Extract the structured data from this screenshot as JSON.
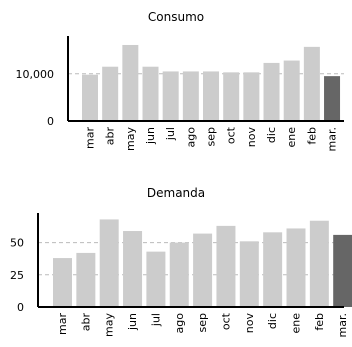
{
  "colors": {
    "bar": "#cccccc",
    "bar_highlight": "#666666",
    "axis": "#000000",
    "grid": "#bbbbbb"
  },
  "chart_data": [
    {
      "type": "bar",
      "title": "Consumo",
      "categories": [
        "mar",
        "abr",
        "may",
        "jun",
        "jul",
        "ago",
        "sep",
        "oct",
        "nov",
        "dic",
        "ene",
        "feb",
        "mar."
      ],
      "values": [
        9800,
        11500,
        16100,
        11500,
        10500,
        10500,
        10500,
        10300,
        10300,
        12300,
        12800,
        15700,
        9500
      ],
      "highlight_index": 12,
      "ylim": [
        0,
        18000
      ],
      "yticks": [
        0,
        10000
      ],
      "ytick_labels": [
        "0",
        "10,000"
      ],
      "grid_values": [
        10000
      ],
      "xlabel": "",
      "ylabel": ""
    },
    {
      "type": "bar",
      "title": "Demanda",
      "categories": [
        "mar",
        "abr",
        "may",
        "jun",
        "jul",
        "ago",
        "sep",
        "oct",
        "nov",
        "dic",
        "ene",
        "feb",
        "mar."
      ],
      "values": [
        38,
        42,
        68,
        59,
        43,
        50,
        57,
        63,
        51,
        58,
        61,
        67,
        56
      ],
      "highlight_index": 12,
      "ylim": [
        0,
        73
      ],
      "yticks": [
        0,
        25,
        50
      ],
      "ytick_labels": [
        "0",
        "25",
        "50"
      ],
      "grid_values": [
        25,
        50
      ],
      "xlabel": "",
      "ylabel": ""
    }
  ]
}
